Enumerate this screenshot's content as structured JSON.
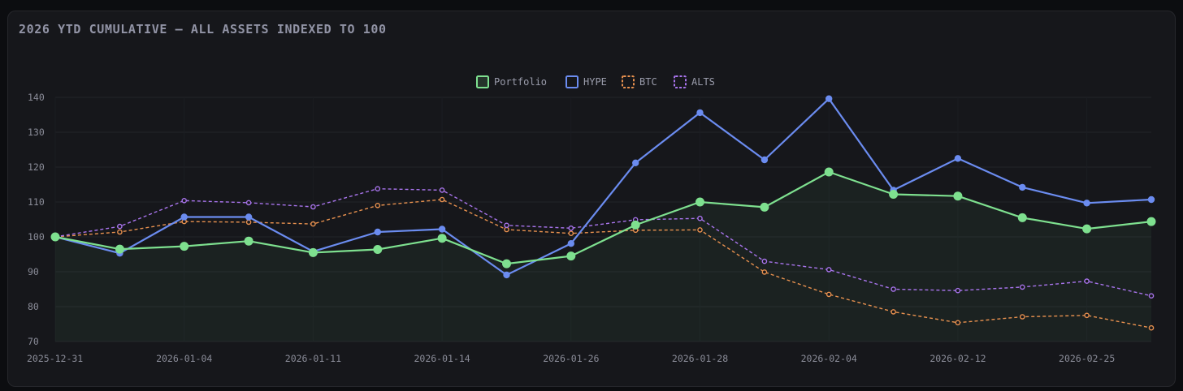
{
  "page": {
    "title": "2026 YTD CUMULATIVE — ALL ASSETS INDEXED TO 100"
  },
  "colors": {
    "background": "#0c0d10",
    "card": "#16171b",
    "grid": "#22242a",
    "portfolio": "#7ee08f",
    "hype": "#6b8cf0",
    "btc": "#e8914f",
    "alts": "#a874ec"
  },
  "chart_data": {
    "type": "line",
    "title": "2026 YTD CUMULATIVE — ALL ASSETS INDEXED TO 100",
    "legend_position": "top-center",
    "grid": true,
    "ylim": [
      70,
      140
    ],
    "yticks": [
      70,
      80,
      90,
      100,
      110,
      120,
      130,
      140
    ],
    "x_tick_labels": [
      "2025-12-31",
      "2026-01-04",
      "2026-01-11",
      "2026-01-14",
      "2026-01-26",
      "2026-01-28",
      "2026-02-04",
      "2026-02-12",
      "2026-02-25"
    ],
    "point_count": 18,
    "series": [
      {
        "name": "Portfolio",
        "style": "solid",
        "filled": true,
        "values": [
          100,
          96.5,
          97.3,
          98.8,
          95.5,
          96.4,
          99.6,
          92.3,
          94.5,
          103.4,
          110,
          108.5,
          118.6,
          112.2,
          111.7,
          105.5,
          102.3,
          104.4
        ]
      },
      {
        "name": "HYPE",
        "style": "solid",
        "values": [
          100,
          95.3,
          105.7,
          105.7,
          95.8,
          101.4,
          102.2,
          89.1,
          98.1,
          121.2,
          135.6,
          122.1,
          139.6,
          113.4,
          122.5,
          114.2,
          109.7,
          110.7
        ]
      },
      {
        "name": "BTC",
        "style": "dashed",
        "values": [
          100,
          101.4,
          104.4,
          104.2,
          103.7,
          109,
          110.7,
          102.1,
          101,
          101.9,
          102,
          89.9,
          83.5,
          78.5,
          75.4,
          77.1,
          77.5,
          73.9
        ]
      },
      {
        "name": "ALTS",
        "style": "dashed",
        "values": [
          100,
          103,
          110.4,
          109.8,
          108.6,
          113.8,
          113.4,
          103.3,
          102.5,
          104.9,
          105.3,
          93,
          90.6,
          85,
          84.6,
          85.6,
          87.3,
          83.1
        ]
      }
    ]
  }
}
